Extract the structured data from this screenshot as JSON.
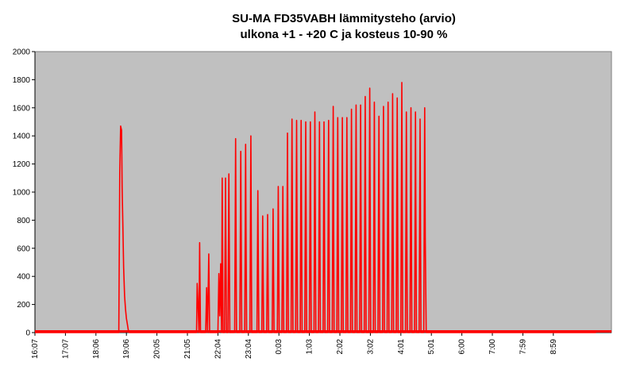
{
  "chart_data": {
    "type": "line",
    "title": "SU-MA FD35VABH lämmitysteho (arvio)",
    "subtitle": "ulkona +1 - +20 C ja kosteus 10-90 %",
    "xlabel": "",
    "ylabel": "",
    "ylim": [
      0,
      2000
    ],
    "y_ticks": [
      0,
      200,
      400,
      600,
      800,
      1000,
      1200,
      1400,
      1600,
      1800,
      2000
    ],
    "x_tick_labels": [
      "16:07",
      "17:07",
      "18:06",
      "19:06",
      "20:05",
      "21:05",
      "22:04",
      "23:04",
      "0:03",
      "1:03",
      "2:02",
      "3:02",
      "4:01",
      "5:01",
      "6:00",
      "7:00",
      "7:59",
      "8:59"
    ],
    "grid": false,
    "legend": "none",
    "colors": {
      "series": "#ff0000",
      "plot_background": "#c0c0c0",
      "page_background": "#ffffff"
    },
    "series": [
      {
        "values": [
          [
            0,
            0
          ],
          [
            2.75,
            0
          ],
          [
            2.78,
            1140
          ],
          [
            2.81,
            1470
          ],
          [
            2.84,
            1440
          ],
          [
            2.86,
            1030
          ],
          [
            2.88,
            800
          ],
          [
            2.91,
            460
          ],
          [
            2.94,
            260
          ],
          [
            2.97,
            170
          ],
          [
            3.0,
            100
          ],
          [
            3.03,
            60
          ],
          [
            3.06,
            20
          ],
          [
            3.1,
            0
          ],
          [
            5.3,
            0
          ],
          [
            5.32,
            350
          ],
          [
            5.35,
            200
          ],
          [
            5.38,
            0
          ],
          [
            5.4,
            640
          ],
          [
            5.43,
            0
          ],
          [
            5.6,
            0
          ],
          [
            5.63,
            320
          ],
          [
            5.66,
            0
          ],
          [
            5.7,
            560
          ],
          [
            5.73,
            0
          ],
          [
            6.0,
            0
          ],
          [
            6.03,
            420
          ],
          [
            6.06,
            120
          ],
          [
            6.09,
            490
          ],
          [
            6.12,
            0
          ],
          [
            6.14,
            1100
          ],
          [
            6.17,
            0
          ],
          [
            6.22,
            0
          ],
          [
            6.25,
            1100
          ],
          [
            6.28,
            0
          ],
          [
            6.33,
            0
          ],
          [
            6.36,
            1130
          ],
          [
            6.39,
            0
          ],
          [
            6.55,
            0
          ],
          [
            6.58,
            1380
          ],
          [
            6.61,
            0
          ],
          [
            6.72,
            0
          ],
          [
            6.75,
            1290
          ],
          [
            6.78,
            0
          ],
          [
            6.88,
            0
          ],
          [
            6.91,
            1340
          ],
          [
            6.94,
            0
          ],
          [
            7.05,
            0
          ],
          [
            7.08,
            1400
          ],
          [
            7.11,
            0
          ],
          [
            7.28,
            0
          ],
          [
            7.31,
            1010
          ],
          [
            7.34,
            0
          ],
          [
            7.44,
            0
          ],
          [
            7.47,
            830
          ],
          [
            7.5,
            0
          ],
          [
            7.6,
            0
          ],
          [
            7.63,
            840
          ],
          [
            7.66,
            0
          ],
          [
            7.78,
            0
          ],
          [
            7.81,
            880
          ],
          [
            7.84,
            0
          ],
          [
            7.95,
            0
          ],
          [
            7.98,
            1040
          ],
          [
            8.01,
            0
          ],
          [
            8.1,
            0
          ],
          [
            8.13,
            1040
          ],
          [
            8.16,
            0
          ],
          [
            8.25,
            0
          ],
          [
            8.28,
            1420
          ],
          [
            8.31,
            0
          ],
          [
            8.4,
            0
          ],
          [
            8.43,
            1520
          ],
          [
            8.46,
            0
          ],
          [
            8.55,
            0
          ],
          [
            8.58,
            1510
          ],
          [
            8.61,
            0
          ],
          [
            8.7,
            0
          ],
          [
            8.73,
            1510
          ],
          [
            8.76,
            0
          ],
          [
            8.85,
            0
          ],
          [
            8.88,
            1500
          ],
          [
            8.91,
            0
          ],
          [
            9.0,
            0
          ],
          [
            9.03,
            1500
          ],
          [
            9.06,
            0
          ],
          [
            9.15,
            0
          ],
          [
            9.18,
            1570
          ],
          [
            9.21,
            0
          ],
          [
            9.3,
            0
          ],
          [
            9.33,
            1500
          ],
          [
            9.36,
            0
          ],
          [
            9.45,
            0
          ],
          [
            9.48,
            1500
          ],
          [
            9.51,
            0
          ],
          [
            9.6,
            0
          ],
          [
            9.63,
            1510
          ],
          [
            9.66,
            0
          ],
          [
            9.75,
            0
          ],
          [
            9.78,
            1610
          ],
          [
            9.81,
            0
          ],
          [
            9.9,
            0
          ],
          [
            9.93,
            1530
          ],
          [
            9.96,
            0
          ],
          [
            10.05,
            0
          ],
          [
            10.08,
            1530
          ],
          [
            10.11,
            0
          ],
          [
            10.2,
            0
          ],
          [
            10.23,
            1530
          ],
          [
            10.26,
            0
          ],
          [
            10.35,
            0
          ],
          [
            10.38,
            1590
          ],
          [
            10.41,
            0
          ],
          [
            10.5,
            0
          ],
          [
            10.53,
            1620
          ],
          [
            10.56,
            0
          ],
          [
            10.65,
            0
          ],
          [
            10.68,
            1620
          ],
          [
            10.71,
            0
          ],
          [
            10.8,
            0
          ],
          [
            10.83,
            1680
          ],
          [
            10.86,
            0
          ],
          [
            10.95,
            0
          ],
          [
            10.98,
            1740
          ],
          [
            11.01,
            0
          ],
          [
            11.1,
            0
          ],
          [
            11.13,
            1640
          ],
          [
            11.16,
            0
          ],
          [
            11.25,
            0
          ],
          [
            11.28,
            1540
          ],
          [
            11.31,
            0
          ],
          [
            11.4,
            0
          ],
          [
            11.43,
            1610
          ],
          [
            11.46,
            0
          ],
          [
            11.55,
            0
          ],
          [
            11.58,
            1640
          ],
          [
            11.61,
            0
          ],
          [
            11.7,
            0
          ],
          [
            11.73,
            1700
          ],
          [
            11.76,
            0
          ],
          [
            11.85,
            0
          ],
          [
            11.88,
            1670
          ],
          [
            11.91,
            0
          ],
          [
            12.0,
            0
          ],
          [
            12.03,
            1780
          ],
          [
            12.06,
            0
          ],
          [
            12.15,
            0
          ],
          [
            12.18,
            1570
          ],
          [
            12.21,
            0
          ],
          [
            12.3,
            0
          ],
          [
            12.33,
            1600
          ],
          [
            12.36,
            0
          ],
          [
            12.45,
            0
          ],
          [
            12.48,
            1570
          ],
          [
            12.51,
            0
          ],
          [
            12.6,
            0
          ],
          [
            12.63,
            1520
          ],
          [
            12.66,
            0
          ],
          [
            12.75,
            0
          ],
          [
            12.78,
            1600
          ],
          [
            12.8,
            680
          ],
          [
            12.83,
            0
          ],
          [
            18.4,
            0
          ]
        ]
      }
    ]
  }
}
